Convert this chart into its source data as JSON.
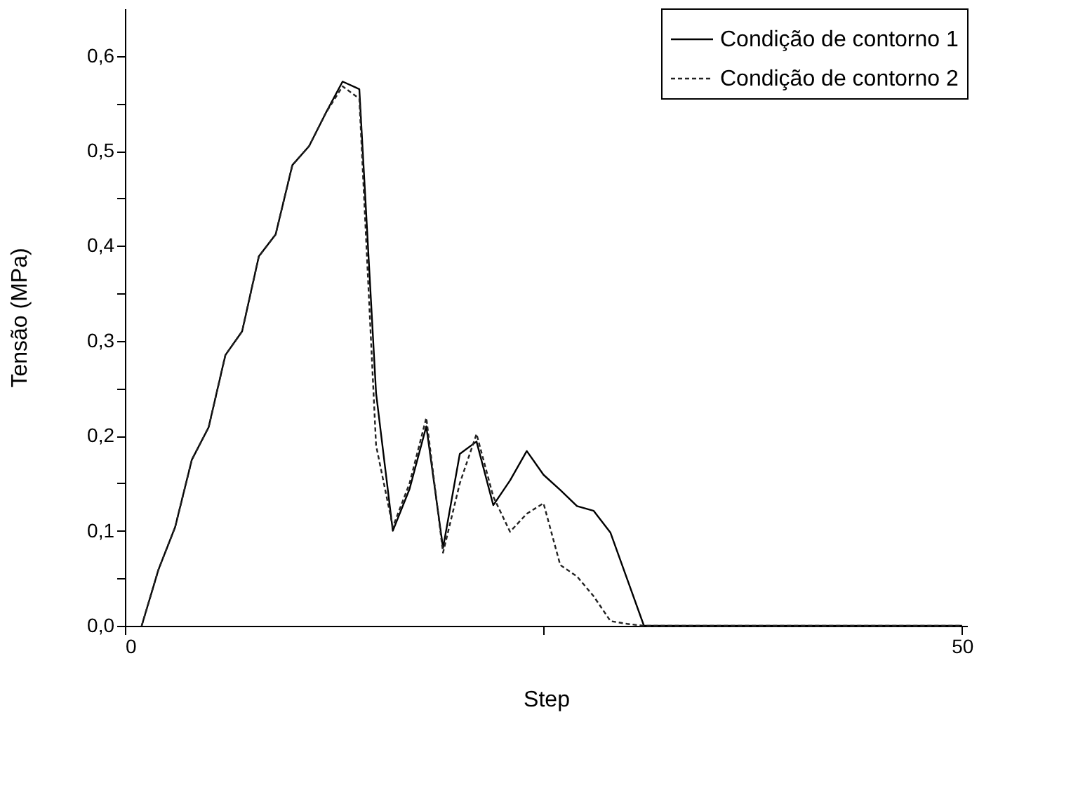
{
  "chart_data": {
    "type": "line",
    "xlabel": "Step",
    "ylabel": "Tensão (MPa)",
    "xlim": [
      0,
      50.3
    ],
    "ylim": [
      0,
      0.65
    ],
    "xticks": [
      0,
      {
        "value": 25,
        "label": null
      },
      50
    ],
    "yticks": [
      {
        "value": 0,
        "label": "0,0"
      },
      {
        "value": 0.05,
        "label": null
      },
      {
        "value": 0.1,
        "label": "0,1"
      },
      {
        "value": 0.15,
        "label": null
      },
      {
        "value": 0.2,
        "label": "0,2"
      },
      {
        "value": 0.25,
        "label": null
      },
      {
        "value": 0.3,
        "label": "0,3"
      },
      {
        "value": 0.35,
        "label": null
      },
      {
        "value": 0.4,
        "label": "0,4"
      },
      {
        "value": 0.45,
        "label": null
      },
      {
        "value": 0.5,
        "label": "0,5"
      },
      {
        "value": 0.55,
        "label": null
      },
      {
        "value": 0.6,
        "label": "0,6"
      }
    ],
    "x": [
      1,
      2,
      3,
      4,
      5,
      6,
      7,
      8,
      9,
      10,
      11,
      12,
      13,
      14,
      15,
      16,
      17,
      18,
      19,
      20,
      21,
      22,
      23,
      24,
      25,
      26,
      27,
      28,
      29,
      30,
      31,
      35,
      40,
      45,
      50
    ],
    "grid": false,
    "legend": "top right",
    "marker": "none",
    "series": [
      {
        "name": "Condição de contorno 1",
        "color": "#000000",
        "line_style": "solid",
        "values": [
          0,
          0.059,
          0.104,
          0.175,
          0.209,
          0.285,
          0.31,
          0.389,
          0.412,
          0.485,
          0.505,
          0.54,
          0.573,
          0.565,
          0.245,
          0.1,
          0.144,
          0.21,
          0.082,
          0.181,
          0.194,
          0.127,
          0.153,
          0.184,
          0.159,
          0.143,
          0.126,
          0.121,
          0.098,
          0.049,
          0,
          0,
          0,
          0,
          0
        ]
      },
      {
        "name": "Condição de contorno 2",
        "color": "#222222",
        "line_style": "dashed",
        "values": [
          0,
          0.059,
          0.104,
          0.175,
          0.209,
          0.285,
          0.31,
          0.389,
          0.412,
          0.485,
          0.505,
          0.54,
          0.568,
          0.555,
          0.19,
          0.104,
          0.15,
          0.219,
          0.077,
          0.15,
          0.202,
          0.136,
          0.099,
          0.118,
          0.129,
          0.064,
          0.052,
          0.031,
          0.005,
          0.002,
          0,
          0,
          0,
          0,
          0
        ]
      }
    ]
  }
}
